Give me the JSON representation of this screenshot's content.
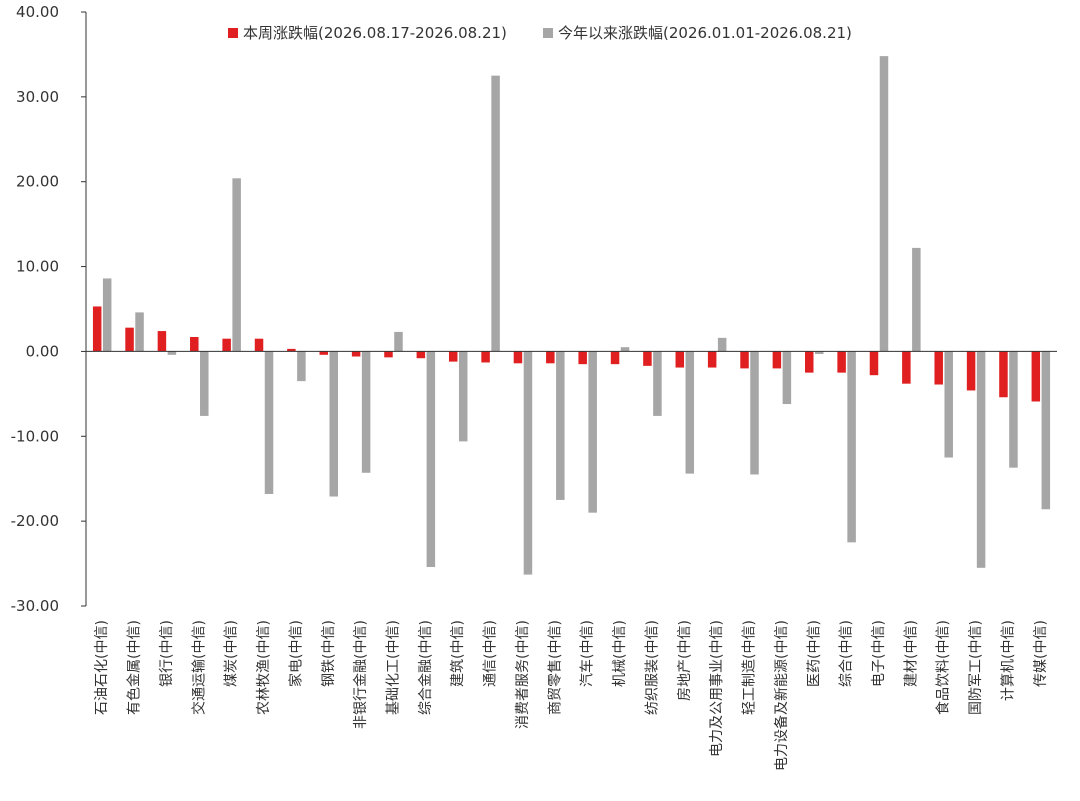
{
  "chart_data": {
    "type": "bar",
    "title": "",
    "xlabel": "",
    "ylabel": "",
    "ylim": [
      -30,
      40
    ],
    "yticks": [
      "40.00",
      "30.00",
      "20.00",
      "10.00",
      "0.00",
      "-10.00",
      "-20.00",
      "-30.00"
    ],
    "legend_position": "top",
    "categories": [
      "石油石化(中信)",
      "有色金属(中信)",
      "银行(中信)",
      "交通运输(中信)",
      "煤炭(中信)",
      "农林牧渔(中信)",
      "家电(中信)",
      "钢铁(中信)",
      "非银行金融(中信)",
      "基础化工(中信)",
      "综合金融(中信)",
      "建筑(中信)",
      "通信(中信)",
      "消费者服务(中信)",
      "商贸零售(中信)",
      "汽车(中信)",
      "机械(中信)",
      "纺织服装(中信)",
      "房地产(中信)",
      "电力及公用事业(中信)",
      "轻工制造(中信)",
      "电力设备及新能源(中信)",
      "医药(中信)",
      "综合(中信)",
      "电子(中信)",
      "建材(中信)",
      "食品饮料(中信)",
      "国防军工(中信)",
      "计算机(中信)",
      "传媒(中信)"
    ],
    "series": [
      {
        "name": "本周涨跌幅(2026.08.17-2026.08.21)",
        "color": "#e02020",
        "values": [
          5.3,
          2.8,
          2.4,
          1.7,
          1.5,
          1.5,
          0.3,
          -0.4,
          -0.6,
          -0.7,
          -0.8,
          -1.2,
          -1.3,
          -1.4,
          -1.4,
          -1.5,
          -1.5,
          -1.7,
          -1.9,
          -1.9,
          -2.0,
          -2.0,
          -2.5,
          -2.5,
          -2.8,
          -3.8,
          -3.9,
          -4.6,
          -5.4,
          -5.9
        ]
      },
      {
        "name": "今年以来涨跌幅(2026.01.01-2026.08.21)",
        "color": "#a6a6a6",
        "values": [
          8.6,
          4.6,
          -0.4,
          -7.6,
          20.4,
          -16.8,
          -3.5,
          -17.1,
          -14.3,
          2.3,
          -25.4,
          -10.6,
          32.5,
          -26.3,
          -17.5,
          -19.0,
          0.5,
          -7.6,
          -14.4,
          1.6,
          -14.5,
          -6.2,
          -0.3,
          -22.5,
          34.8,
          12.2,
          -12.5,
          -25.5,
          -13.7,
          -18.6
        ]
      }
    ]
  }
}
